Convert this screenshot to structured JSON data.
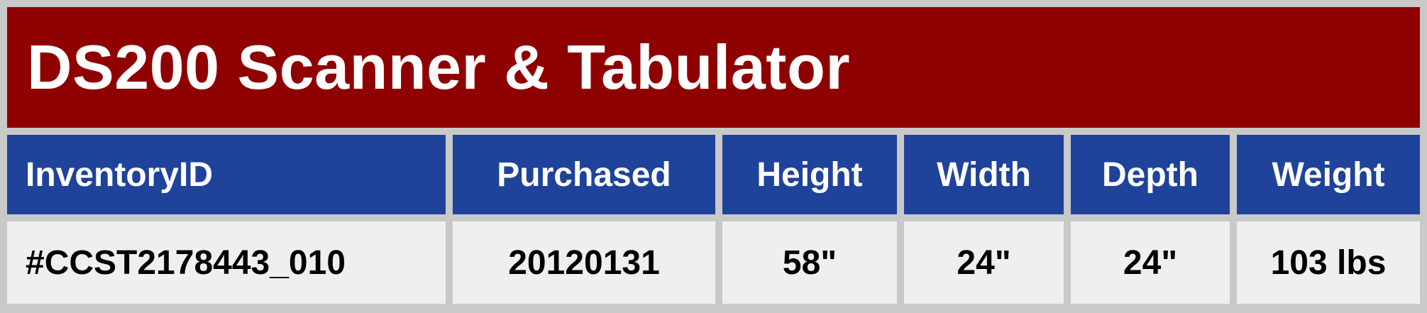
{
  "title": "DS200 Scanner & Tabulator",
  "colors": {
    "title_bg": "#8f0000",
    "header_bg": "#1f439a",
    "cell_bg": "#efefef",
    "frame_bg": "#c9c9c9"
  },
  "table": {
    "headers": [
      "InventoryID",
      "Purchased",
      "Height",
      "Width",
      "Depth",
      "Weight"
    ],
    "row": [
      "#CCST2178443_010",
      "20120131",
      "58\"",
      "24\"",
      "24\"",
      "103 lbs"
    ]
  }
}
